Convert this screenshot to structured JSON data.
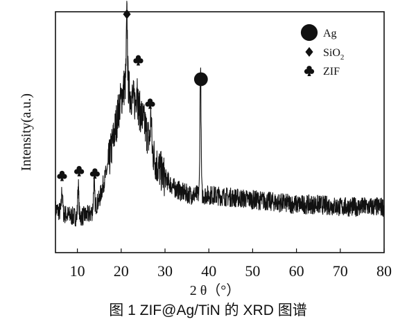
{
  "figure": {
    "caption": "图 1 ZIF@Ag/TiN 的 XRD 图谱"
  },
  "chart_data": {
    "type": "line",
    "title": "",
    "xlabel": "2 θ（°）",
    "ylabel": "Intensity(a.u.)",
    "xlim": [
      5,
      80
    ],
    "ylim": [
      0,
      100
    ],
    "xticks": [
      10,
      20,
      30,
      40,
      50,
      60,
      70,
      80
    ],
    "grid": false,
    "legend_position": "top-right",
    "legend": [
      {
        "marker": "circle",
        "label": "Ag"
      },
      {
        "marker": "diamond",
        "label": "SiO",
        "sub": "2"
      },
      {
        "marker": "club",
        "label": "ZIF"
      }
    ],
    "series": [
      {
        "x": [
          5,
          7,
          9,
          11,
          13,
          15,
          17,
          18.5,
          19.5,
          20.5,
          21.3,
          22,
          23,
          24,
          25,
          26,
          27,
          28,
          30,
          32,
          34,
          36,
          38,
          40,
          45,
          50,
          55,
          60,
          65,
          70,
          75,
          80
        ],
        "y": [
          18,
          16,
          15,
          15,
          16,
          22,
          36,
          50,
          60,
          68,
          72,
          66,
          63,
          60,
          55,
          49,
          43,
          37,
          31,
          27,
          25,
          24,
          24,
          24,
          23,
          22,
          21,
          20,
          20,
          19,
          19,
          19
        ],
        "peaks": [
          {
            "x": 6.5,
            "h": 10
          },
          {
            "x": 10.2,
            "h": 13
          },
          {
            "x": 13.8,
            "h": 11
          },
          {
            "x": 21.3,
            "h": 26
          },
          {
            "x": 23.6,
            "h": 10
          },
          {
            "x": 26.8,
            "h": 13
          },
          {
            "x": 38.1,
            "h": 54
          }
        ],
        "noise": 4
      }
    ],
    "annotations": [
      {
        "x": 6.5,
        "y": 32,
        "marker": "club"
      },
      {
        "x": 10.4,
        "y": 34,
        "marker": "club"
      },
      {
        "x": 14.0,
        "y": 33,
        "marker": "club"
      },
      {
        "x": 21.3,
        "y": 99,
        "marker": "diamond"
      },
      {
        "x": 23.9,
        "y": 80,
        "marker": "club"
      },
      {
        "x": 26.6,
        "y": 62,
        "marker": "club"
      },
      {
        "x": 38.2,
        "y": 72,
        "marker": "circle"
      }
    ]
  }
}
